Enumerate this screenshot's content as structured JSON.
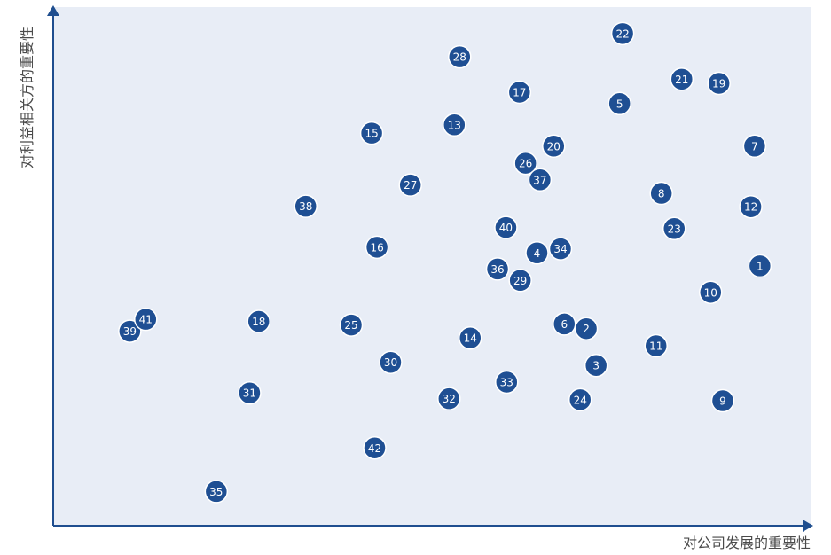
{
  "chart_data": {
    "type": "scatter",
    "xlabel": "对公司发展的重要性",
    "ylabel": "对利益相关方的重要性",
    "xlim": [
      0,
      100
    ],
    "ylim": [
      0,
      100
    ],
    "grid": false,
    "points": [
      {
        "label": "1",
        "x": 93.2,
        "y": 50.1
      },
      {
        "label": "2",
        "x": 70.3,
        "y": 38.0
      },
      {
        "label": "3",
        "x": 71.6,
        "y": 30.9
      },
      {
        "label": "4",
        "x": 63.8,
        "y": 52.6
      },
      {
        "label": "5",
        "x": 74.7,
        "y": 81.4
      },
      {
        "label": "6",
        "x": 67.4,
        "y": 38.9
      },
      {
        "label": "7",
        "x": 92.5,
        "y": 73.2
      },
      {
        "label": "8",
        "x": 80.2,
        "y": 64.1
      },
      {
        "label": "9",
        "x": 88.3,
        "y": 24.1
      },
      {
        "label": "10",
        "x": 86.7,
        "y": 45.0
      },
      {
        "label": "11",
        "x": 79.5,
        "y": 34.7
      },
      {
        "label": "12",
        "x": 92.0,
        "y": 61.5
      },
      {
        "label": "13",
        "x": 52.9,
        "y": 77.3
      },
      {
        "label": "14",
        "x": 55.0,
        "y": 36.2
      },
      {
        "label": "15",
        "x": 42.0,
        "y": 75.7
      },
      {
        "label": "16",
        "x": 42.7,
        "y": 53.7
      },
      {
        "label": "17",
        "x": 61.5,
        "y": 83.6
      },
      {
        "label": "18",
        "x": 27.1,
        "y": 39.4
      },
      {
        "label": "19",
        "x": 87.8,
        "y": 85.3
      },
      {
        "label": "20",
        "x": 66.0,
        "y": 73.2
      },
      {
        "label": "21",
        "x": 82.9,
        "y": 86.1
      },
      {
        "label": "22",
        "x": 75.1,
        "y": 94.9
      },
      {
        "label": "23",
        "x": 81.9,
        "y": 57.3
      },
      {
        "label": "24",
        "x": 69.5,
        "y": 24.3
      },
      {
        "label": "25",
        "x": 39.3,
        "y": 38.7
      },
      {
        "label": "26",
        "x": 62.3,
        "y": 69.9
      },
      {
        "label": "27",
        "x": 47.1,
        "y": 65.7
      },
      {
        "label": "28",
        "x": 53.6,
        "y": 90.4
      },
      {
        "label": "29",
        "x": 61.6,
        "y": 47.3
      },
      {
        "label": "30",
        "x": 44.5,
        "y": 31.5
      },
      {
        "label": "31",
        "x": 25.9,
        "y": 25.6
      },
      {
        "label": "32",
        "x": 52.2,
        "y": 24.5
      },
      {
        "label": "33",
        "x": 59.8,
        "y": 27.7
      },
      {
        "label": "34",
        "x": 66.9,
        "y": 53.4
      },
      {
        "label": "35",
        "x": 21.5,
        "y": 6.6
      },
      {
        "label": "36",
        "x": 58.6,
        "y": 49.5
      },
      {
        "label": "37",
        "x": 64.2,
        "y": 66.7
      },
      {
        "label": "38",
        "x": 33.3,
        "y": 61.6
      },
      {
        "label": "39",
        "x": 10.1,
        "y": 37.5
      },
      {
        "label": "40",
        "x": 59.7,
        "y": 57.5
      },
      {
        "label": "41",
        "x": 12.2,
        "y": 39.8
      },
      {
        "label": "42",
        "x": 42.4,
        "y": 15.0
      }
    ]
  }
}
